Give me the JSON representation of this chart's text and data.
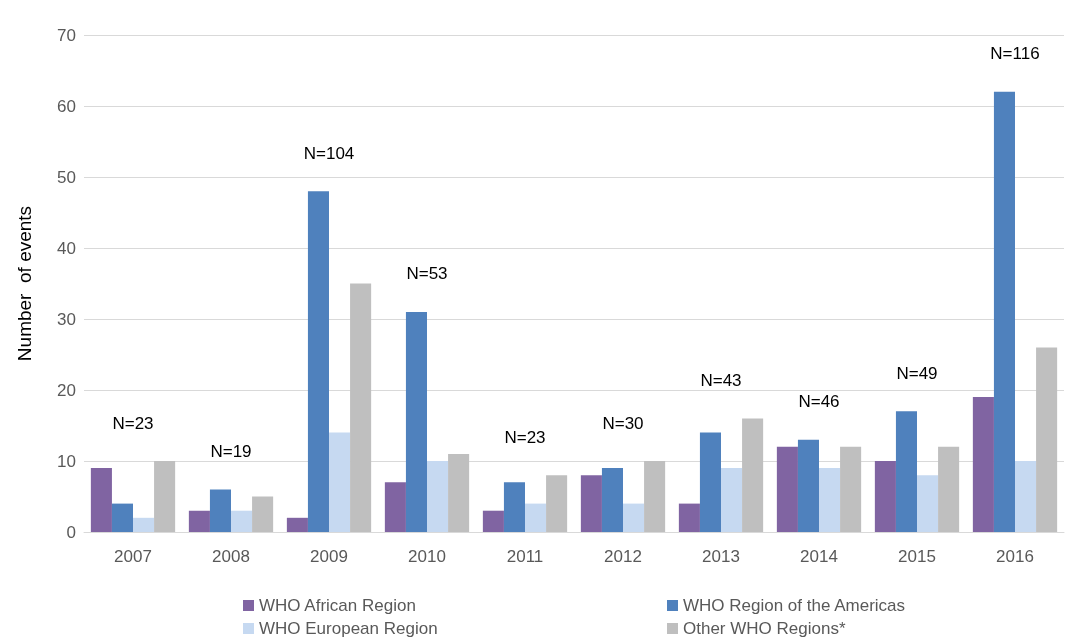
{
  "chart_data": {
    "type": "bar",
    "ylabel": "Number  of events",
    "categories": [
      "2007",
      "2008",
      "2009",
      "2010",
      "2011",
      "2012",
      "2013",
      "2014",
      "2015",
      "2016"
    ],
    "series": [
      {
        "name": "WHO African Region",
        "color": "#8064a2",
        "values": [
          9,
          3,
          2,
          7,
          3,
          8,
          4,
          12,
          10,
          19
        ]
      },
      {
        "name": "WHO Region of the Americas",
        "color": "#4f81bd",
        "values": [
          4,
          6,
          48,
          31,
          7,
          9,
          14,
          13,
          17,
          62
        ]
      },
      {
        "name": "WHO European Region",
        "color": "#c6d9f1",
        "values": [
          2,
          3,
          14,
          10,
          4,
          4,
          9,
          9,
          8,
          10
        ]
      },
      {
        "name": "Other WHO Regions*",
        "color": "#bfbfbf",
        "values": [
          10,
          5,
          35,
          11,
          8,
          10,
          16,
          12,
          12,
          26
        ]
      }
    ],
    "ylim": [
      0,
      70
    ],
    "yticks": [
      0,
      10,
      20,
      30,
      40,
      50,
      60,
      70
    ],
    "grid": "y",
    "legend": "bottom",
    "annotations": [
      "N=23",
      "N=19",
      "N=104",
      "N=53",
      "N=23",
      "N=30",
      "N=43",
      "N=46",
      "N=49",
      "N=116"
    ]
  }
}
